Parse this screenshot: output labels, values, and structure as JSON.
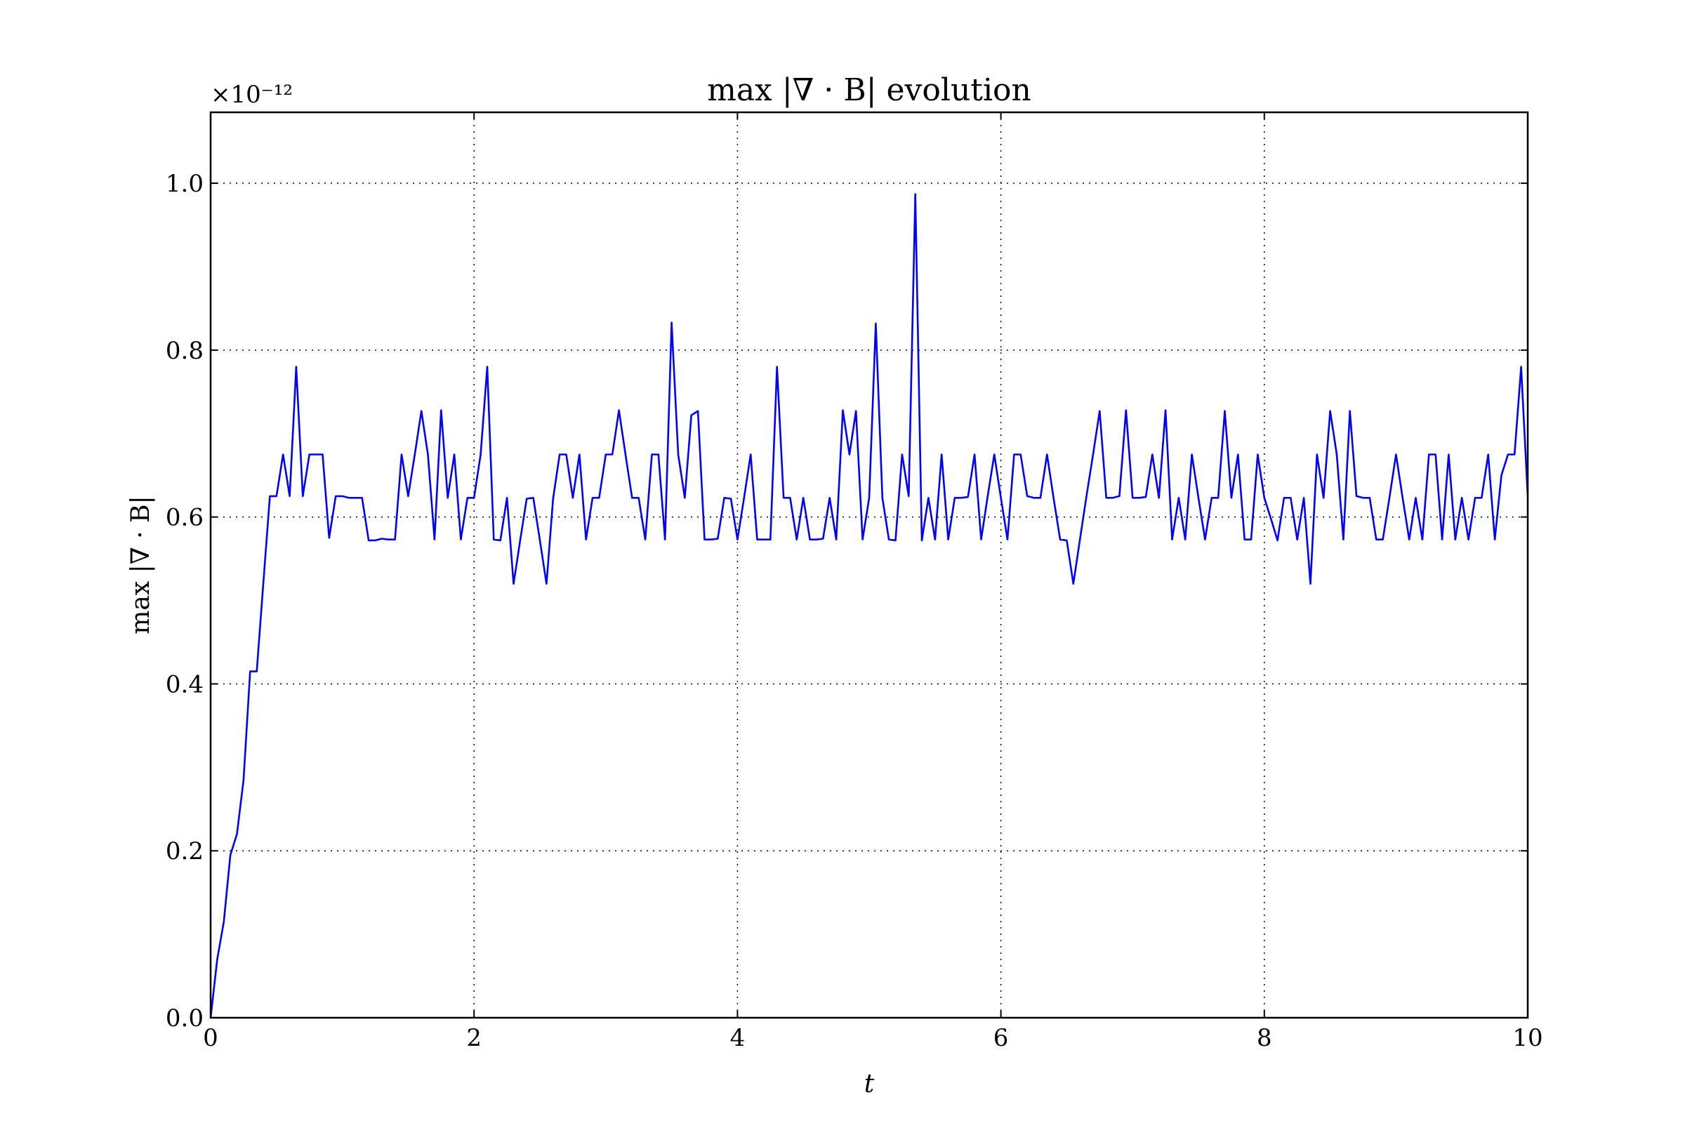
{
  "chart_data": {
    "type": "line",
    "title": "max |∇ · B| evolution",
    "xlabel": "t",
    "ylabel": "max |∇ · B|",
    "offset_text": "×10⁻¹²",
    "xlim": [
      0,
      10
    ],
    "ylim": [
      0,
      1.085
    ],
    "xticks": [
      0,
      2,
      4,
      6,
      8,
      10
    ],
    "xtick_labels": [
      "0",
      "2",
      "4",
      "6",
      "8",
      "10"
    ],
    "yticks": [
      0.0,
      0.2,
      0.4,
      0.6,
      0.8,
      1.0
    ],
    "ytick_labels": [
      "0.0",
      "0.2",
      "0.4",
      "0.6",
      "0.8",
      "1.0"
    ],
    "grid": true,
    "line_color": "#0000ff",
    "series": [
      {
        "x": [
          0.0,
          0.05,
          0.1,
          0.15,
          0.2,
          0.25,
          0.3,
          0.35,
          0.4,
          0.45,
          0.5,
          0.55,
          0.6,
          0.65,
          0.7,
          0.75,
          0.8,
          0.85,
          0.9,
          0.95,
          1.0,
          1.05,
          1.1,
          1.15,
          1.2,
          1.25,
          1.3,
          1.35,
          1.4,
          1.45,
          1.5,
          1.55,
          1.6,
          1.65,
          1.7,
          1.75,
          1.8,
          1.85,
          1.9,
          1.95,
          2.0,
          2.05,
          2.1,
          2.15,
          2.2,
          2.25,
          2.3,
          2.35,
          2.4,
          2.45,
          2.5,
          2.55,
          2.6,
          2.65,
          2.7,
          2.75,
          2.8,
          2.85,
          2.9,
          2.95,
          3.0,
          3.05,
          3.1,
          3.15,
          3.2,
          3.25,
          3.3,
          3.35,
          3.4,
          3.45,
          3.5,
          3.55,
          3.6,
          3.65,
          3.7,
          3.75,
          3.8,
          3.85,
          3.9,
          3.95,
          4.0,
          4.05,
          4.1,
          4.15,
          4.2,
          4.25,
          4.3,
          4.35,
          4.4,
          4.45,
          4.5,
          4.55,
          4.6,
          4.65,
          4.7,
          4.75,
          4.8,
          4.85,
          4.9,
          4.95,
          5.0,
          5.05,
          5.1,
          5.15,
          5.2,
          5.25,
          5.3,
          5.35,
          5.4,
          5.45,
          5.5,
          5.55,
          5.6,
          5.65,
          5.7,
          5.75,
          5.8,
          5.85,
          5.9,
          5.95,
          6.0,
          6.05,
          6.1,
          6.15,
          6.2,
          6.25,
          6.3,
          6.35,
          6.4,
          6.45,
          6.5,
          6.55,
          6.6,
          6.65,
          6.7,
          6.75,
          6.8,
          6.85,
          6.9,
          6.95,
          7.0,
          7.05,
          7.1,
          7.15,
          7.2,
          7.25,
          7.3,
          7.35,
          7.4,
          7.45,
          7.5,
          7.55,
          7.6,
          7.65,
          7.7,
          7.75,
          7.8,
          7.85,
          7.9,
          7.95,
          8.0,
          8.05,
          8.1,
          8.15,
          8.2,
          8.25,
          8.3,
          8.35,
          8.4,
          8.45,
          8.5,
          8.55,
          8.6,
          8.65,
          8.7,
          8.75,
          8.8,
          8.85,
          8.9,
          8.95,
          9.0,
          9.05,
          9.1,
          9.15,
          9.2,
          9.25,
          9.3,
          9.35,
          9.4,
          9.45,
          9.5,
          9.55,
          9.6,
          9.65,
          9.7,
          9.75,
          9.8,
          9.85,
          9.9,
          9.95,
          10.0
        ],
        "values": [
          0.0,
          0.07,
          0.115,
          0.195,
          0.22,
          0.285,
          0.415,
          0.415,
          0.52,
          0.625,
          0.625,
          0.675,
          0.625,
          0.78,
          0.625,
          0.675,
          0.675,
          0.675,
          0.575,
          0.625,
          0.625,
          0.623,
          0.623,
          0.623,
          0.572,
          0.572,
          0.574,
          0.573,
          0.573,
          0.675,
          0.625,
          0.675,
          0.727,
          0.675,
          0.573,
          0.728,
          0.623,
          0.675,
          0.573,
          0.623,
          0.623,
          0.675,
          0.78,
          0.573,
          0.572,
          0.623,
          0.52,
          0.572,
          0.622,
          0.623,
          0.572,
          0.52,
          0.622,
          0.675,
          0.675,
          0.623,
          0.675,
          0.573,
          0.623,
          0.623,
          0.675,
          0.675,
          0.728,
          0.675,
          0.623,
          0.623,
          0.573,
          0.675,
          0.675,
          0.573,
          0.833,
          0.675,
          0.623,
          0.722,
          0.727,
          0.573,
          0.573,
          0.574,
          0.623,
          0.622,
          0.573,
          0.623,
          0.675,
          0.573,
          0.573,
          0.573,
          0.78,
          0.623,
          0.623,
          0.573,
          0.623,
          0.573,
          0.573,
          0.574,
          0.623,
          0.573,
          0.728,
          0.675,
          0.727,
          0.573,
          0.623,
          0.832,
          0.623,
          0.573,
          0.572,
          0.675,
          0.625,
          0.987,
          0.572,
          0.623,
          0.573,
          0.675,
          0.573,
          0.623,
          0.623,
          0.624,
          0.675,
          0.573,
          0.625,
          0.675,
          0.623,
          0.573,
          0.675,
          0.675,
          0.625,
          0.623,
          0.623,
          0.675,
          0.623,
          0.573,
          0.572,
          0.52,
          0.573,
          0.625,
          0.675,
          0.727,
          0.623,
          0.623,
          0.625,
          0.728,
          0.623,
          0.623,
          0.624,
          0.675,
          0.623,
          0.728,
          0.573,
          0.623,
          0.573,
          0.675,
          0.623,
          0.573,
          0.623,
          0.623,
          0.727,
          0.623,
          0.675,
          0.573,
          0.573,
          0.675,
          0.623,
          0.598,
          0.572,
          0.623,
          0.623,
          0.573,
          0.623,
          0.52,
          0.675,
          0.623,
          0.727,
          0.675,
          0.573,
          0.727,
          0.625,
          0.623,
          0.623,
          0.573,
          0.573,
          0.623,
          0.675,
          0.623,
          0.573,
          0.623,
          0.573,
          0.675,
          0.675,
          0.573,
          0.675,
          0.573,
          0.623,
          0.573,
          0.623,
          0.623,
          0.675,
          0.573,
          0.65,
          0.675,
          0.675,
          0.78,
          0.625
        ]
      }
    ]
  }
}
